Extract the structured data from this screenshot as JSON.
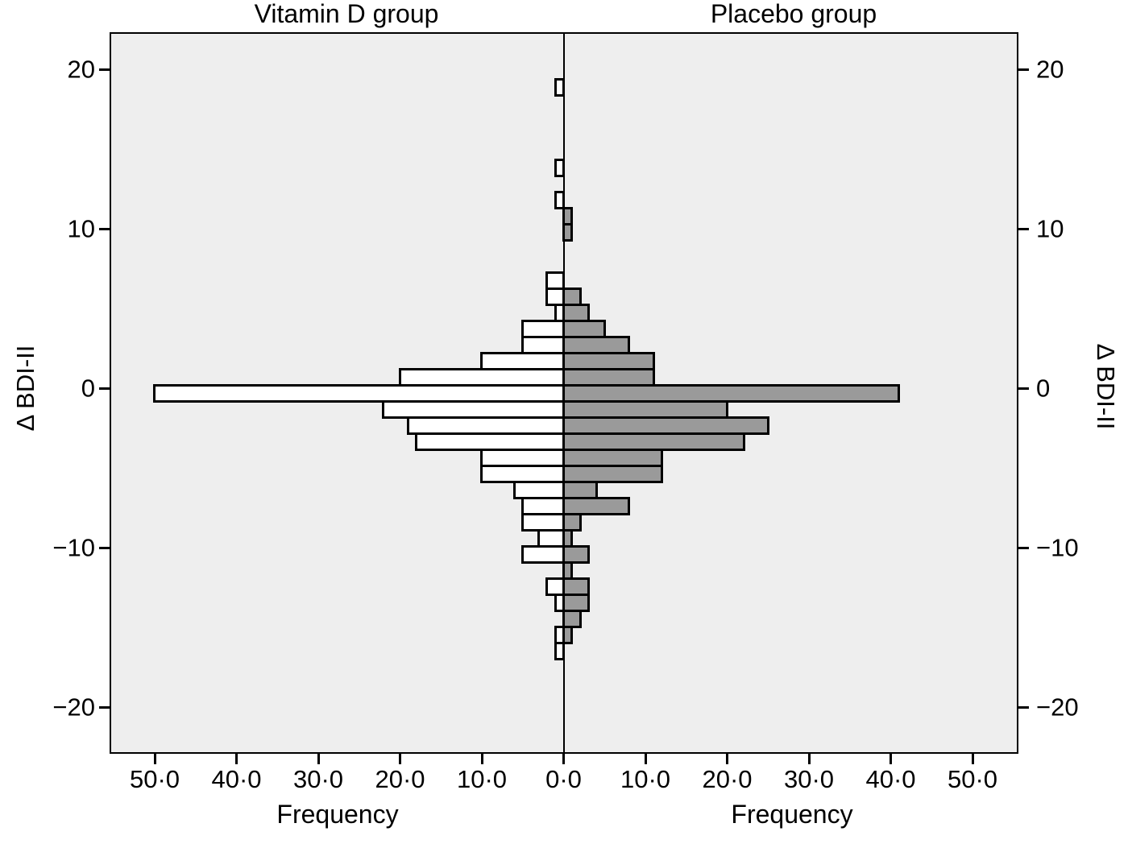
{
  "chart_data": {
    "type": "bar",
    "variant": "back-to-back-horizontal-histogram",
    "panel_titles": [
      "Vitamin D group",
      "Placebo group"
    ],
    "xlabel": "Frequency",
    "ylabel": "Δ BDI-II",
    "bin_width": 1,
    "bin_centers": [
      19,
      18,
      17,
      16,
      15,
      14,
      13,
      12,
      11,
      10,
      9,
      8,
      7,
      6,
      5,
      4,
      3,
      2,
      1,
      0,
      -1,
      -2,
      -3,
      -4,
      -5,
      -6,
      -7,
      -8,
      -9,
      -10,
      -11,
      -12,
      -13,
      -14,
      -15,
      -16
    ],
    "series": [
      {
        "name": "Vitamin D group",
        "side": "left",
        "color": "#ffffff",
        "values": [
          1,
          0,
          0,
          0,
          0,
          1,
          0,
          1,
          0,
          0,
          0,
          0,
          2,
          2,
          1,
          5,
          5,
          10,
          20,
          50,
          22,
          19,
          18,
          10,
          10,
          6,
          5,
          5,
          3,
          5,
          0,
          2,
          1,
          0,
          1,
          1
        ]
      },
      {
        "name": "Placebo group",
        "side": "right",
        "color": "#9a9a9a",
        "values": [
          0,
          0,
          0,
          0,
          0,
          0,
          0,
          0,
          1,
          1,
          0,
          0,
          0,
          2,
          3,
          5,
          8,
          11,
          11,
          41,
          20,
          25,
          22,
          12,
          12,
          4,
          8,
          2,
          1,
          3,
          1,
          3,
          3,
          2,
          1,
          0
        ]
      }
    ],
    "y_tick_values": [
      20,
      10,
      0,
      -10,
      -20
    ],
    "y_tick_labels": [
      "20",
      "10",
      "0",
      "−10",
      "−20"
    ],
    "x_tick_values": [
      -50,
      -40,
      -30,
      -20,
      -10,
      0,
      10,
      20,
      30,
      40,
      50
    ],
    "x_tick_labels": [
      "50·0",
      "40·0",
      "30·0",
      "20·0",
      "10·0",
      "0·0",
      "10·0",
      "20·0",
      "30·0",
      "40·0",
      "50·0"
    ],
    "x_max_per_side": 55,
    "ylim": [
      -22.5,
      22.5
    ],
    "grid": false,
    "legend": "none",
    "plot_background": "#eeeeee",
    "bar_border_color": "#000000",
    "axis_color": "#000000"
  }
}
